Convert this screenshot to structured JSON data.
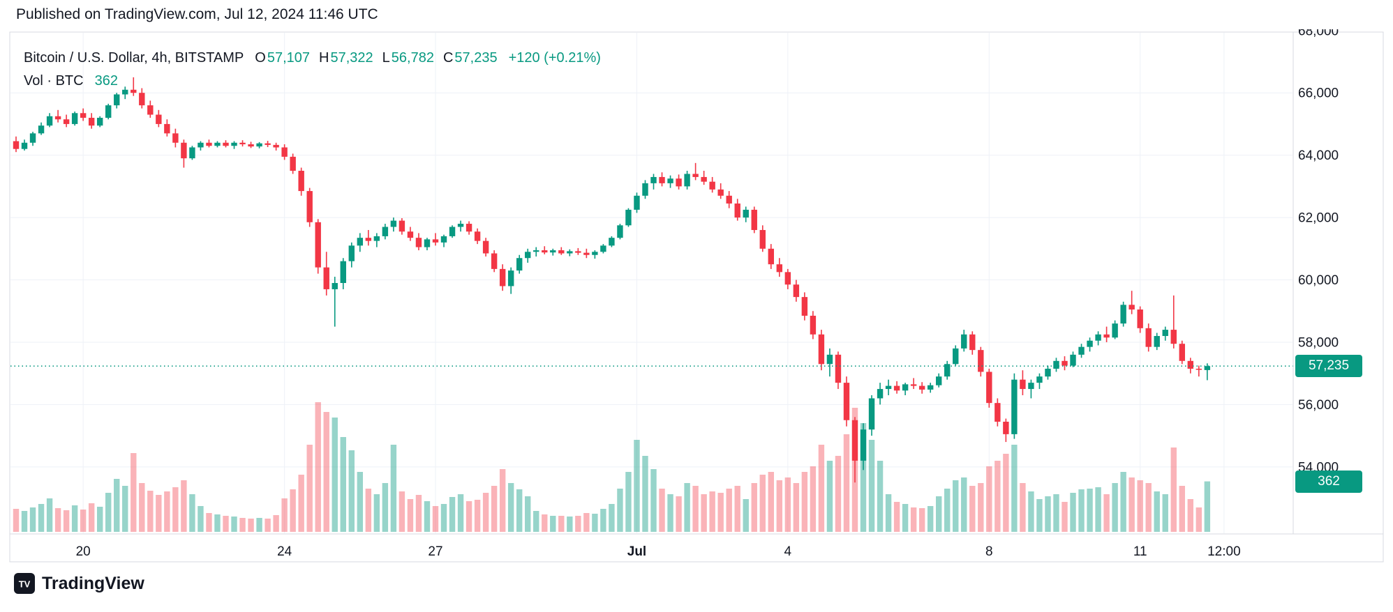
{
  "published": {
    "text": "Published on TradingView.com, Jul 12, 2024 11:46 UTC"
  },
  "legend": {
    "symbol": {
      "title": "Bitcoin / U.S. Dollar, 4h, BITSTAMP",
      "o_label": "O",
      "o": "57,107",
      "h_label": "H",
      "h": "57,322",
      "l_label": "L",
      "l": "56,782",
      "c_label": "C",
      "c": "57,235",
      "change": "+120 (+0.21%)"
    },
    "volume": {
      "label": "Vol · BTC",
      "value": "362"
    }
  },
  "footer": {
    "brand": "TradingView",
    "logo_glyph": "TV"
  },
  "colors": {
    "up": "#089981",
    "down": "#f23645",
    "vol_up": "rgba(8,153,129,0.42)",
    "vol_down": "rgba(242,54,69,0.38)",
    "accent": "#089981",
    "grid": "#eef1f7",
    "border": "#d7dae0",
    "axis_text": "#131722",
    "background": "#ffffff"
  },
  "chart_data": {
    "type": "candlestick+volume",
    "title": "Bitcoin / U.S. Dollar, 4h, BITSTAMP",
    "symbol": "Bitcoin / U.S. Dollar",
    "exchange": "BITSTAMP",
    "interval": "4h",
    "start": "2024-06-18 16:00 UTC",
    "step_hours": 4,
    "ohlc_last": {
      "open": 57107,
      "high": 57322,
      "low": 56782,
      "close": 57235,
      "change": 120,
      "change_pct": 0.21
    },
    "price_line": 57235,
    "last_price_label": "57,235",
    "last_volume_label": "362",
    "ylim": [
      51850,
      67950
    ],
    "y_ticks": [
      68000,
      66000,
      64000,
      62000,
      60000,
      58000,
      56000,
      54000
    ],
    "x_ticks": [
      {
        "index": 8,
        "label": "20"
      },
      {
        "index": 32,
        "label": "24"
      },
      {
        "index": 50,
        "label": "27"
      },
      {
        "index": 74,
        "label": "Jul",
        "bold": true
      },
      {
        "index": 92,
        "label": "4"
      },
      {
        "index": 116,
        "label": "8"
      },
      {
        "index": 134,
        "label": "11"
      },
      {
        "index": 144,
        "label": "12:00"
      }
    ],
    "candles_format": [
      "open",
      "high",
      "low",
      "close",
      "volume_btc"
    ],
    "candles": [
      [
        64450,
        64600,
        64100,
        64200,
        165
      ],
      [
        64200,
        64500,
        64150,
        64400,
        150
      ],
      [
        64400,
        64750,
        64300,
        64700,
        175
      ],
      [
        64700,
        65050,
        64650,
        64950,
        200
      ],
      [
        64950,
        65350,
        64900,
        65250,
        240
      ],
      [
        65250,
        65450,
        65050,
        65150,
        170
      ],
      [
        65150,
        65300,
        64900,
        65000,
        155
      ],
      [
        65000,
        65400,
        64950,
        65350,
        190
      ],
      [
        65350,
        65500,
        65100,
        65200,
        160
      ],
      [
        65200,
        65350,
        64850,
        64950,
        205
      ],
      [
        64950,
        65250,
        64900,
        65200,
        180
      ],
      [
        65200,
        65650,
        65150,
        65600,
        280
      ],
      [
        65600,
        66000,
        65500,
        65950,
        380
      ],
      [
        65950,
        66200,
        65800,
        66100,
        330
      ],
      [
        66100,
        66499,
        65900,
        66000,
        565
      ],
      [
        66000,
        66150,
        65500,
        65600,
        350
      ],
      [
        65600,
        65750,
        65200,
        65300,
        295
      ],
      [
        65300,
        65450,
        64900,
        65000,
        265
      ],
      [
        65000,
        65150,
        64600,
        64700,
        290
      ],
      [
        64700,
        64850,
        64250,
        64400,
        320
      ],
      [
        64400,
        64500,
        63600,
        63900,
        370
      ],
      [
        63900,
        64300,
        63850,
        64250,
        270
      ],
      [
        64250,
        64450,
        64150,
        64400,
        185
      ],
      [
        64400,
        64500,
        64250,
        64300,
        135
      ],
      [
        64300,
        64450,
        64250,
        64400,
        125
      ],
      [
        64400,
        64480,
        64250,
        64300,
        115
      ],
      [
        64300,
        64450,
        64200,
        64400,
        110
      ],
      [
        64400,
        64480,
        64280,
        64350,
        100
      ],
      [
        64350,
        64430,
        64230,
        64280,
        95
      ],
      [
        64280,
        64420,
        64220,
        64380,
        100
      ],
      [
        64380,
        64460,
        64260,
        64330,
        95
      ],
      [
        64330,
        64400,
        64150,
        64250,
        120
      ],
      [
        64250,
        64350,
        63850,
        63950,
        240
      ],
      [
        63950,
        64050,
        63400,
        63500,
        305
      ],
      [
        63500,
        63600,
        62700,
        62850,
        410
      ],
      [
        62850,
        62950,
        61700,
        61850,
        625
      ],
      [
        61850,
        61950,
        60200,
        60400,
        930
      ],
      [
        60400,
        60900,
        59500,
        59700,
        860
      ],
      [
        59700,
        60100,
        58500,
        59900,
        820
      ],
      [
        59900,
        60700,
        59700,
        60600,
        680
      ],
      [
        60600,
        61200,
        60400,
        61100,
        585
      ],
      [
        61100,
        61500,
        60900,
        61350,
        430
      ],
      [
        61350,
        61600,
        61100,
        61250,
        310
      ],
      [
        61250,
        61500,
        61050,
        61400,
        270
      ],
      [
        61400,
        61800,
        61300,
        61700,
        350
      ],
      [
        61700,
        62000,
        61550,
        61900,
        625
      ],
      [
        61900,
        61980,
        61450,
        61550,
        290
      ],
      [
        61550,
        61700,
        61250,
        61350,
        235
      ],
      [
        61350,
        61500,
        60950,
        61050,
        265
      ],
      [
        61050,
        61350,
        60950,
        61300,
        220
      ],
      [
        61300,
        61500,
        61100,
        61200,
        185
      ],
      [
        61200,
        61450,
        61050,
        61400,
        200
      ],
      [
        61400,
        61750,
        61350,
        61700,
        250
      ],
      [
        61700,
        61900,
        61550,
        61800,
        270
      ],
      [
        61800,
        61880,
        61450,
        61550,
        220
      ],
      [
        61550,
        61650,
        61150,
        61250,
        230
      ],
      [
        61250,
        61350,
        60750,
        60850,
        280
      ],
      [
        60850,
        60950,
        60250,
        60350,
        330
      ],
      [
        60350,
        60500,
        59650,
        59800,
        450
      ],
      [
        59800,
        60400,
        59550,
        60300,
        350
      ],
      [
        60300,
        60800,
        60200,
        60700,
        305
      ],
      [
        60700,
        61000,
        60550,
        60900,
        255
      ],
      [
        60900,
        61050,
        60750,
        60950,
        150
      ],
      [
        60950,
        61080,
        60820,
        60880,
        125
      ],
      [
        60880,
        61000,
        60780,
        60950,
        115
      ],
      [
        60950,
        61050,
        60800,
        60850,
        115
      ],
      [
        60850,
        60980,
        60760,
        60920,
        110
      ],
      [
        60920,
        61020,
        60800,
        60870,
        115
      ],
      [
        60870,
        61000,
        60700,
        60800,
        135
      ],
      [
        60800,
        60950,
        60680,
        60900,
        130
      ],
      [
        60900,
        61150,
        60850,
        61100,
        165
      ],
      [
        61100,
        61400,
        61050,
        61350,
        200
      ],
      [
        61350,
        61800,
        61300,
        61750,
        310
      ],
      [
        61750,
        62300,
        61700,
        62250,
        430
      ],
      [
        62250,
        62800,
        62150,
        62700,
        660
      ],
      [
        62700,
        63200,
        62600,
        63100,
        545
      ],
      [
        63100,
        63400,
        62900,
        63300,
        450
      ],
      [
        63300,
        63450,
        63000,
        63100,
        310
      ],
      [
        63100,
        63350,
        62950,
        63250,
        270
      ],
      [
        63250,
        63380,
        62900,
        63000,
        255
      ],
      [
        63000,
        63500,
        62900,
        63400,
        350
      ],
      [
        63400,
        63750,
        63200,
        63300,
        330
      ],
      [
        63300,
        63500,
        63050,
        63150,
        270
      ],
      [
        63150,
        63300,
        62800,
        62900,
        290
      ],
      [
        62900,
        63100,
        62600,
        62700,
        280
      ],
      [
        62700,
        62850,
        62300,
        62450,
        310
      ],
      [
        62450,
        62600,
        61900,
        62000,
        330
      ],
      [
        62000,
        62350,
        61850,
        62250,
        235
      ],
      [
        62250,
        62350,
        61500,
        61600,
        350
      ],
      [
        61600,
        61750,
        60900,
        61000,
        410
      ],
      [
        61000,
        61150,
        60350,
        60500,
        430
      ],
      [
        60500,
        60700,
        60100,
        60250,
        370
      ],
      [
        60250,
        60350,
        59700,
        59850,
        390
      ],
      [
        59850,
        60000,
        59300,
        59450,
        350
      ],
      [
        59450,
        59600,
        58700,
        58850,
        430
      ],
      [
        58850,
        59000,
        58100,
        58250,
        470
      ],
      [
        58250,
        58400,
        57100,
        57300,
        625
      ],
      [
        57300,
        57800,
        56900,
        57600,
        510
      ],
      [
        57600,
        57700,
        56500,
        56700,
        545
      ],
      [
        56700,
        56900,
        55300,
        55500,
        700
      ],
      [
        55500,
        55600,
        53500,
        54200,
        890
      ],
      [
        54200,
        55400,
        53900,
        55200,
        780
      ],
      [
        55200,
        56300,
        55000,
        56200,
        660
      ],
      [
        56200,
        56700,
        56000,
        56500,
        510
      ],
      [
        56500,
        56800,
        56300,
        56600,
        270
      ],
      [
        56600,
        56750,
        56350,
        56450,
        215
      ],
      [
        56450,
        56700,
        56300,
        56650,
        200
      ],
      [
        56650,
        56850,
        56500,
        56600,
        175
      ],
      [
        56600,
        56720,
        56350,
        56480,
        170
      ],
      [
        56480,
        56700,
        56380,
        56620,
        185
      ],
      [
        56620,
        57000,
        56550,
        56900,
        255
      ],
      [
        56900,
        57400,
        56800,
        57300,
        310
      ],
      [
        57300,
        57900,
        57250,
        57800,
        370
      ],
      [
        57800,
        58400,
        57700,
        58250,
        390
      ],
      [
        58250,
        58350,
        57600,
        57750,
        330
      ],
      [
        57750,
        57850,
        56900,
        57050,
        350
      ],
      [
        57050,
        57150,
        55900,
        56050,
        470
      ],
      [
        56050,
        56200,
        55300,
        55450,
        510
      ],
      [
        55450,
        55550,
        54800,
        55050,
        560
      ],
      [
        55050,
        57000,
        54900,
        56800,
        625
      ],
      [
        56800,
        57100,
        56300,
        56500,
        350
      ],
      [
        56500,
        56800,
        56200,
        56700,
        290
      ],
      [
        56700,
        57000,
        56500,
        56900,
        235
      ],
      [
        56900,
        57250,
        56800,
        57150,
        255
      ],
      [
        57150,
        57500,
        57050,
        57400,
        270
      ],
      [
        57400,
        57550,
        57100,
        57250,
        215
      ],
      [
        57250,
        57700,
        57200,
        57600,
        280
      ],
      [
        57600,
        57950,
        57500,
        57850,
        305
      ],
      [
        57850,
        58150,
        57700,
        58050,
        310
      ],
      [
        58050,
        58350,
        57900,
        58250,
        320
      ],
      [
        58250,
        58500,
        58000,
        58150,
        270
      ],
      [
        58150,
        58700,
        58100,
        58600,
        350
      ],
      [
        58600,
        59300,
        58500,
        59200,
        430
      ],
      [
        59200,
        59650,
        58900,
        59050,
        390
      ],
      [
        59050,
        59150,
        58300,
        58450,
        370
      ],
      [
        58450,
        58600,
        57700,
        57850,
        350
      ],
      [
        57850,
        58300,
        57750,
        58200,
        290
      ],
      [
        58200,
        58500,
        58050,
        58400,
        270
      ],
      [
        58400,
        59500,
        57800,
        57950,
        605
      ],
      [
        57950,
        58050,
        57300,
        57400,
        330
      ],
      [
        57400,
        57500,
        57000,
        57150,
        235
      ],
      [
        57150,
        57250,
        56900,
        57115,
        175
      ],
      [
        57107,
        57322,
        56782,
        57235,
        362
      ]
    ]
  }
}
